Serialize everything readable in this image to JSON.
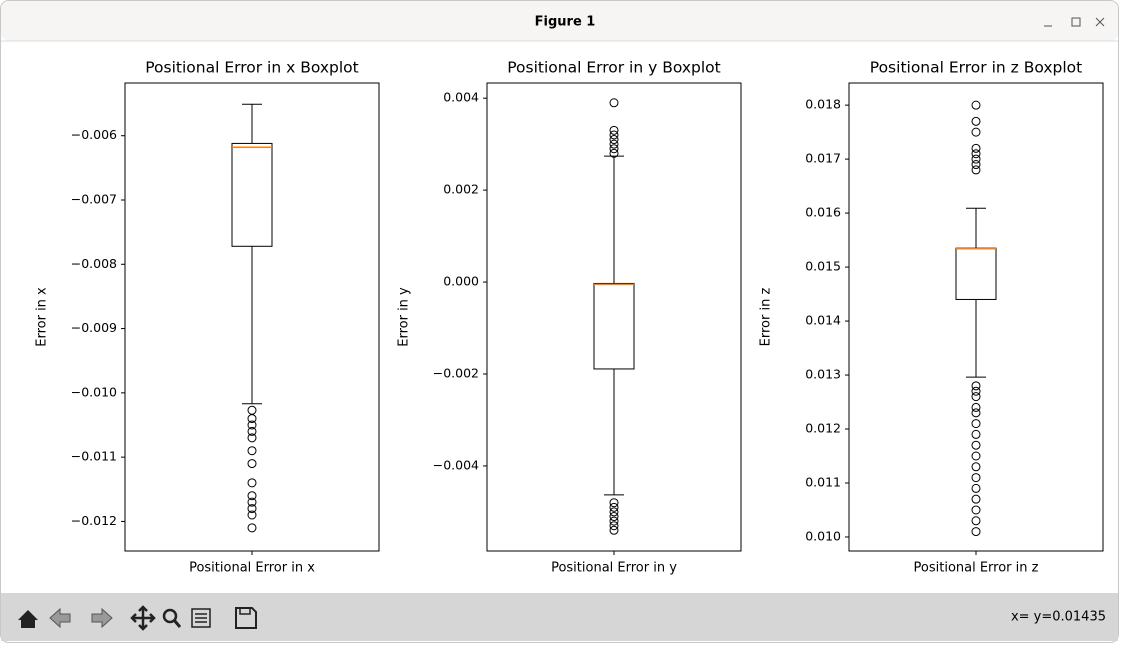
{
  "window": {
    "title": "Figure 1"
  },
  "toolbar": {
    "status": "x= y=0.01435"
  },
  "chart_data": [
    {
      "type": "box",
      "title": "Positional Error in x Boxplot",
      "categories": [
        "Positional Error in x"
      ],
      "ylabel": "Error in x",
      "whisker_low": -0.01017,
      "q1": -0.00772,
      "median": -0.00618,
      "q3": -0.00612,
      "whisker_high": -0.00551,
      "outliers": [
        -0.01027,
        -0.0104,
        -0.0105,
        -0.0106,
        -0.0107,
        -0.0109,
        -0.0111,
        -0.0114,
        -0.0116,
        -0.0117,
        -0.0118,
        -0.0119,
        -0.0121
      ],
      "color": "#000000",
      "median_color": "#ff7f0e",
      "ylim": [
        -0.01246,
        -0.00518
      ],
      "yticks": [
        {
          "value": -0.006,
          "label": "−0.006"
        },
        {
          "value": -0.007,
          "label": "−0.007"
        },
        {
          "value": -0.008,
          "label": "−0.008"
        },
        {
          "value": -0.009,
          "label": "−0.009"
        },
        {
          "value": -0.01,
          "label": "−0.010"
        },
        {
          "value": -0.011,
          "label": "−0.011"
        },
        {
          "value": -0.012,
          "label": "−0.012"
        }
      ]
    },
    {
      "type": "box",
      "title": "Positional Error in y Boxplot",
      "categories": [
        "Positional Error in y"
      ],
      "ylabel": "Error in y",
      "whisker_low": -0.00463,
      "q1": -0.00189,
      "median": -5e-05,
      "q3": -3e-05,
      "whisker_high": 0.00274,
      "outliers": [
        0.0039,
        0.0033,
        0.0032,
        0.0031,
        0.003,
        0.0029,
        0.0028,
        -0.0048,
        -0.0049,
        -0.005,
        -0.0051,
        -0.0052,
        -0.0053,
        -0.0054
      ],
      "color": "#000000",
      "median_color": "#ff7f0e",
      "ylim": [
        -0.00585,
        0.00433
      ],
      "yticks": [
        0.004,
        0.002,
        {
          "value": 0,
          "label": "0.000"
        },
        {
          "value": -0.002,
          "label": "−0.002"
        },
        {
          "value": -0.004,
          "label": "−0.004"
        }
      ]
    },
    {
      "type": "box",
      "title": "Positional Error in z Boxplot",
      "categories": [
        "Positional Error in z"
      ],
      "ylabel": "Error in z",
      "whisker_low": 0.01296,
      "q1": 0.0144,
      "median": 0.01534,
      "q3": 0.01535,
      "whisker_high": 0.01609,
      "outliers": [
        0.018,
        0.0177,
        0.0175,
        0.0172,
        0.0171,
        0.017,
        0.0169,
        0.0168,
        0.0128,
        0.0127,
        0.0126,
        0.0124,
        0.0123,
        0.0121,
        0.0119,
        0.0117,
        0.0115,
        0.0113,
        0.0111,
        0.0109,
        0.0107,
        0.0105,
        0.0103,
        0.0101
      ],
      "color": "#000000",
      "median_color": "#ff7f0e",
      "ylim": [
        0.00974,
        0.01841
      ],
      "yticks": [
        0.018,
        0.017,
        0.016,
        0.015,
        0.014,
        0.013,
        0.012,
        0.011,
        {
          "value": 0.01,
          "label": "0.010"
        }
      ]
    }
  ]
}
